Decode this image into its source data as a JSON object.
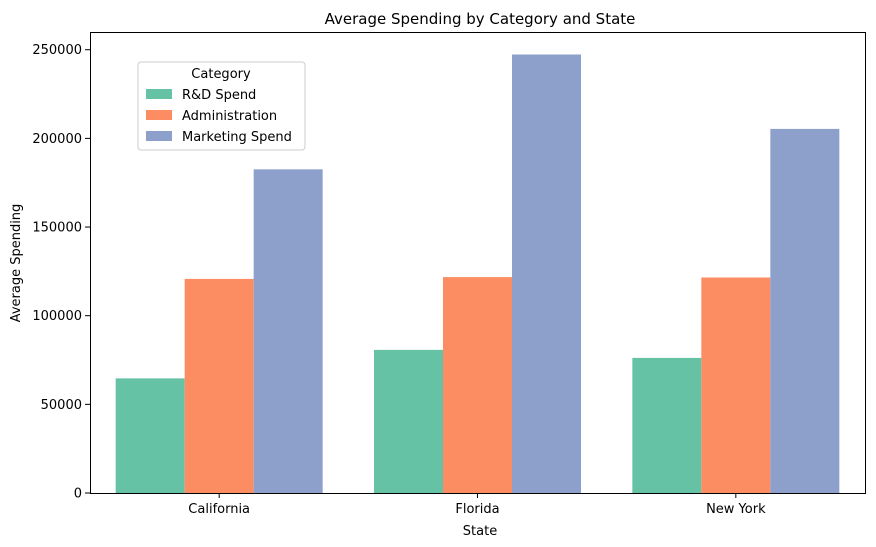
{
  "chart_data": {
    "type": "bar",
    "title": "Average Spending by Category and State",
    "xlabel": "State",
    "ylabel": "Average Spending",
    "categories": [
      "California",
      "Florida",
      "New York"
    ],
    "ylim": [
      0,
      260000
    ],
    "yticks": [
      0,
      50000,
      100000,
      150000,
      200000,
      250000
    ],
    "ytick_labels": [
      "0",
      "50000",
      "100000",
      "150000",
      "200000",
      "250000"
    ],
    "grid": false,
    "legend": {
      "title": "Category",
      "placement": "upper-left"
    },
    "series": [
      {
        "name": "R&D Spend",
        "color": "#66c2a5",
        "values": [
          64658,
          80724,
          76195
        ]
      },
      {
        "name": "Administration",
        "color": "#fc8d62",
        "values": [
          120746,
          121768,
          121543
        ]
      },
      {
        "name": "Marketing Spend",
        "color": "#8da0cb",
        "values": [
          182540,
          247323,
          205346
        ]
      }
    ]
  }
}
